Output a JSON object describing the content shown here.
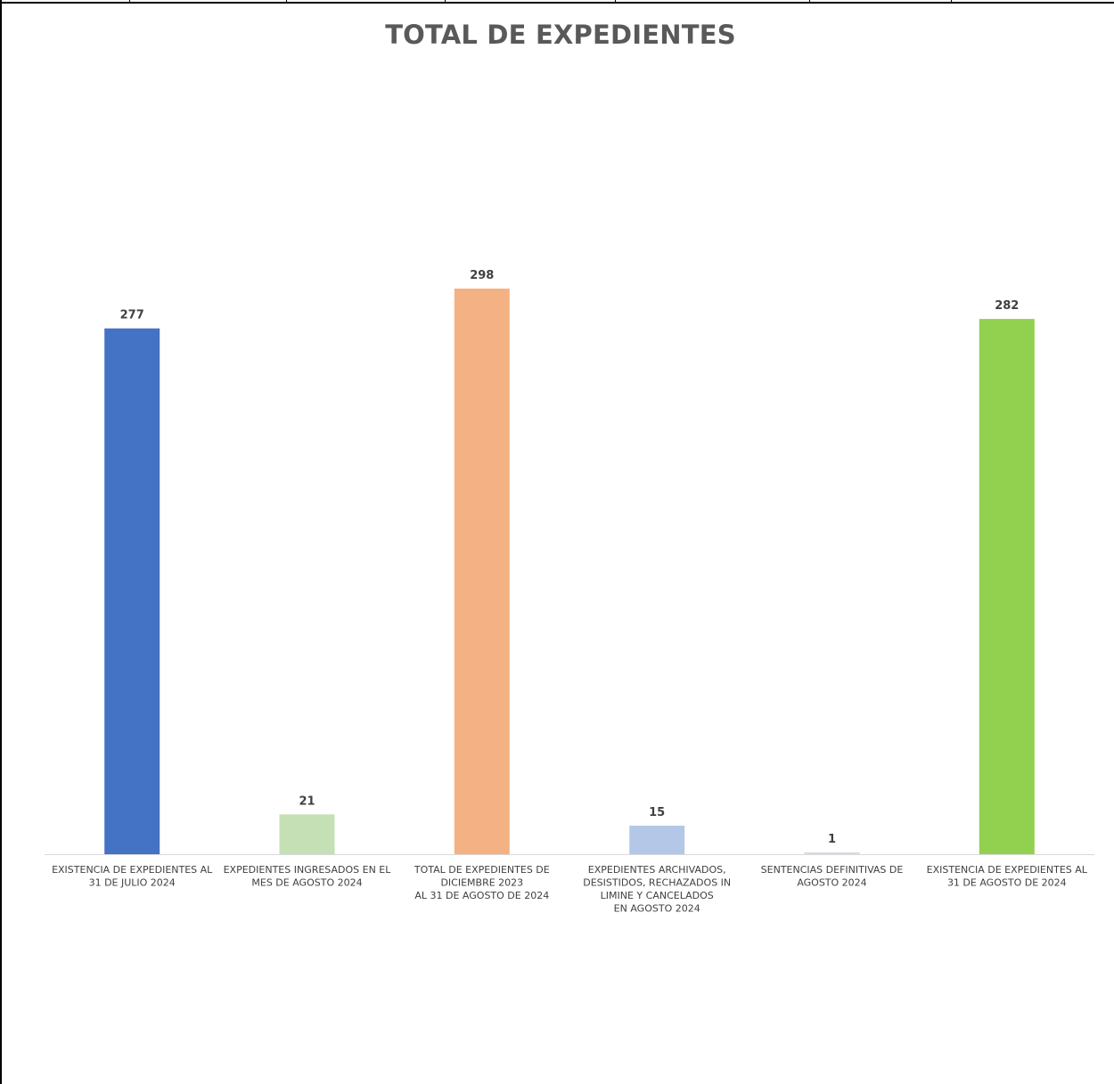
{
  "chart_data": {
    "type": "bar",
    "title": "TOTAL DE EXPEDIENTES",
    "xlabel": "",
    "ylabel": "",
    "ylim": [
      0,
      298
    ],
    "grid": false,
    "legend": "none",
    "categories": [
      [
        "EXISTENCIA DE EXPEDIENTES AL",
        "31 DE JULIO 2024"
      ],
      [
        "EXPEDIENTES INGRESADOS EN EL",
        "MES DE AGOSTO 2024"
      ],
      [
        "TOTAL DE EXPEDIENTES DE",
        "DICIEMBRE 2023",
        "AL 31 DE AGOSTO DE 2024"
      ],
      [
        "EXPEDIENTES ARCHIVADOS,",
        "DESISTIDOS, RECHAZADOS IN",
        "LIMINE Y CANCELADOS",
        "EN AGOSTO 2024"
      ],
      [
        "SENTENCIAS DEFINITIVAS DE",
        "AGOSTO 2024"
      ],
      [
        "EXISTENCIA DE EXPEDIENTES AL",
        "31 DE AGOSTO DE 2024"
      ]
    ],
    "values": [
      277,
      21,
      298,
      15,
      1,
      282
    ],
    "colors": [
      "#4472C4",
      "#C5E0B4",
      "#F4B183",
      "#B4C7E7",
      "#D6DCE5",
      "#92D050"
    ]
  }
}
